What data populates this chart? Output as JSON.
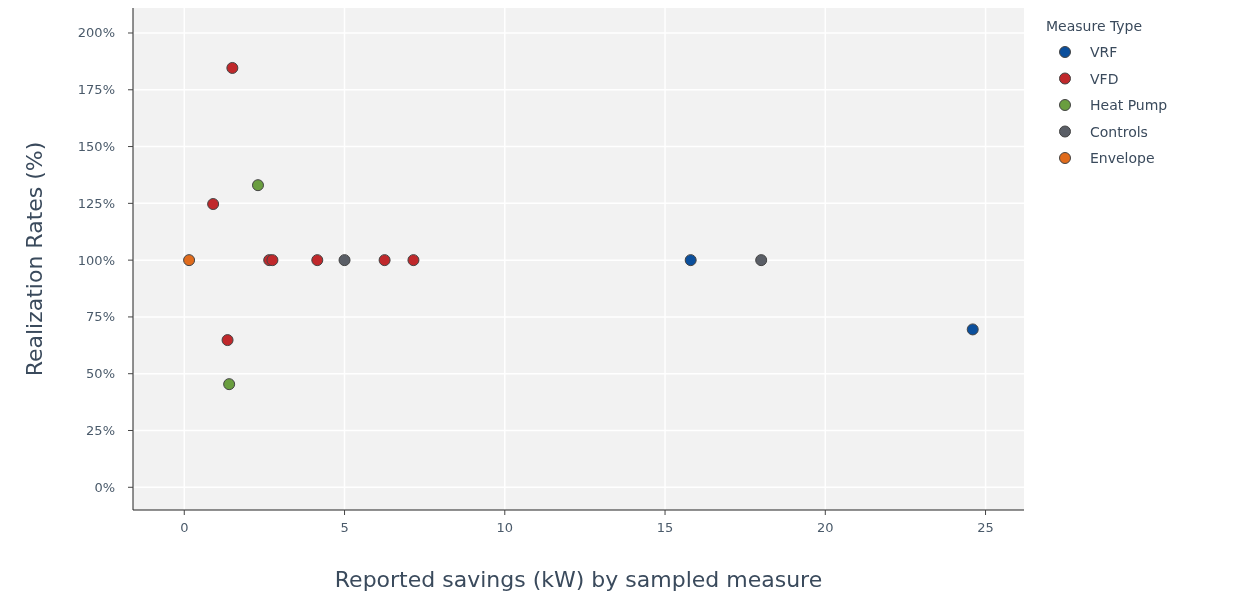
{
  "chart_data": {
    "type": "scatter",
    "xlabel": "Reported savings (kW) by sampled measure",
    "ylabel": "Realization Rates (%)",
    "legend_title": "Measure Type",
    "legend": "top right",
    "grid": true,
    "marker": "circle",
    "xlim": [
      -1.6,
      26.2
    ],
    "xticks": [
      0,
      5,
      10,
      15,
      20,
      25
    ],
    "ylim": [
      -10,
      211
    ],
    "yticks": [
      {
        "value": 0,
        "label": "0%"
      },
      {
        "value": 25,
        "label": "25%"
      },
      {
        "value": 50,
        "label": "50%"
      },
      {
        "value": 75,
        "label": "75%"
      },
      {
        "value": 100,
        "label": "100%"
      },
      {
        "value": 125,
        "label": "125%"
      },
      {
        "value": 150,
        "label": "150%"
      },
      {
        "value": 175,
        "label": "175%"
      },
      {
        "value": 200,
        "label": "200%"
      }
    ],
    "series": [
      {
        "name": "VRF",
        "color": "#0b4f9c",
        "x": [
          15.8,
          24.6
        ],
        "values": [
          100,
          69.5
        ]
      },
      {
        "name": "VFD",
        "color": "#c0282b",
        "x": [
          1.5,
          0.9,
          2.65,
          2.75,
          4.15,
          6.25,
          7.15,
          1.35
        ],
        "values": [
          184.6,
          124.7,
          100,
          100,
          100,
          100,
          100,
          64.8
        ]
      },
      {
        "name": "Heat Pump",
        "color": "#6a9e3f",
        "x": [
          2.3,
          1.4
        ],
        "values": [
          133,
          45.4
        ]
      },
      {
        "name": "Controls",
        "color": "#5a5e66",
        "x": [
          5,
          18
        ],
        "values": [
          100,
          100
        ]
      },
      {
        "name": "Envelope",
        "color": "#e06b1c",
        "x": [
          0.15
        ],
        "values": [
          100
        ]
      }
    ]
  }
}
